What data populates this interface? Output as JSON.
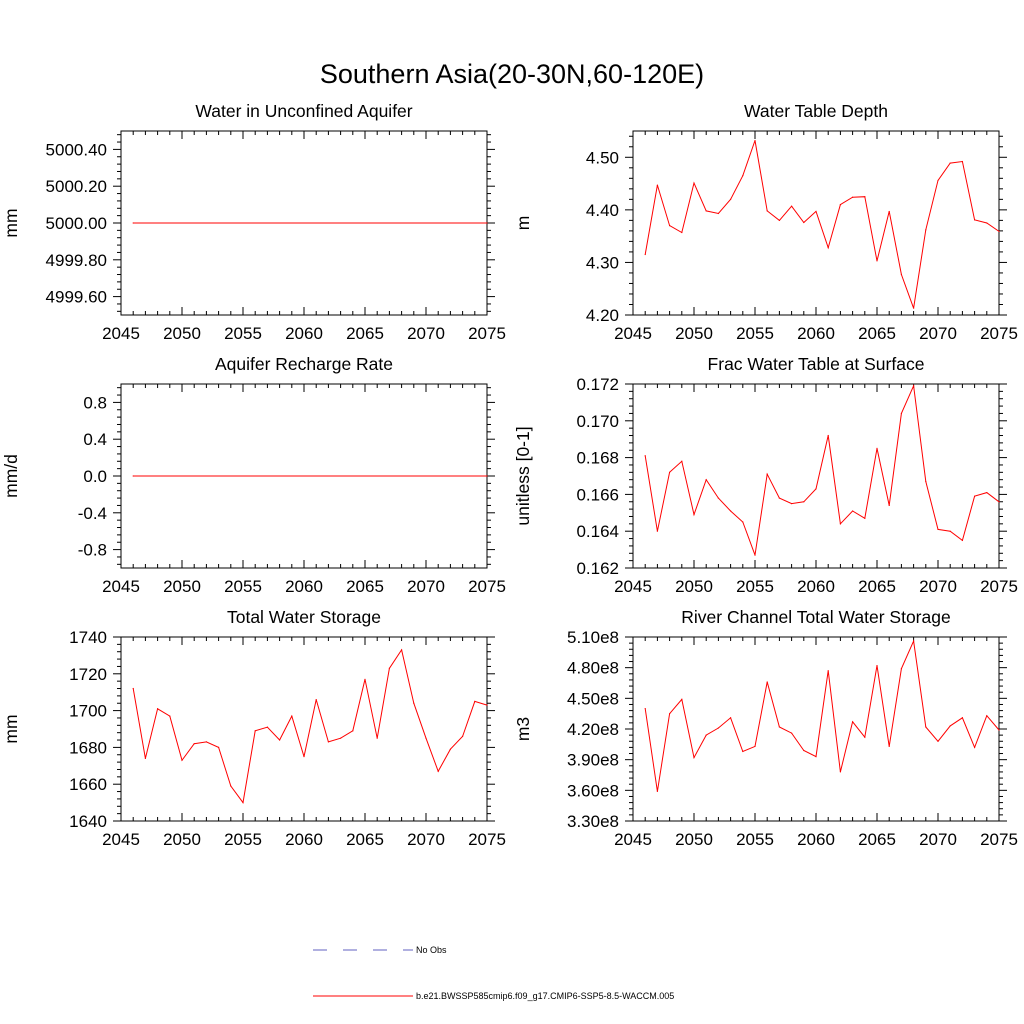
{
  "figure": {
    "title": "Southern Asia(20-30N,60-120E)",
    "series_color": "#ff0000",
    "obs_color": "#6060c0",
    "legend": [
      {
        "label": "No Obs",
        "style": "dashed"
      },
      {
        "label": "b.e21.BWSSP585cmip6.f09_g17.CMIP6-SSP5-8.5-WACCM.005",
        "style": "solid"
      }
    ]
  },
  "chart_data": [
    {
      "type": "line",
      "title": "Water in Unconfined Aquifer",
      "xlabel": "",
      "ylabel": "mm",
      "xlim": [
        2045,
        2075
      ],
      "ylim": [
        4999.5,
        5000.5
      ],
      "xticks": [
        2045,
        2050,
        2055,
        2060,
        2065,
        2070,
        2075
      ],
      "yticks": [
        4999.6,
        4999.8,
        5000.0,
        5000.2,
        5000.4
      ],
      "ytick_labels": [
        "4999.60",
        "4999.80",
        "5000.00",
        "5000.20",
        "5000.40"
      ],
      "x": [
        2046,
        2075
      ],
      "values": [
        5000.0,
        5000.0
      ]
    },
    {
      "type": "line",
      "title": "Water Table Depth",
      "xlabel": "",
      "ylabel": "m",
      "xlim": [
        2045,
        2075
      ],
      "ylim": [
        4.2,
        4.55
      ],
      "xticks": [
        2045,
        2050,
        2055,
        2060,
        2065,
        2070,
        2075
      ],
      "yticks": [
        4.2,
        4.3,
        4.4,
        4.5
      ],
      "ytick_labels": [
        "4.20",
        "4.30",
        "4.40",
        "4.50"
      ],
      "x": [
        2046,
        2047,
        2048,
        2049,
        2050,
        2051,
        2052,
        2053,
        2054,
        2055,
        2056,
        2057,
        2058,
        2059,
        2060,
        2061,
        2062,
        2063,
        2064,
        2065,
        2066,
        2067,
        2068,
        2069,
        2070,
        2071,
        2072,
        2073,
        2074,
        2075
      ],
      "values": [
        4.315,
        4.447,
        4.37,
        4.357,
        4.451,
        4.398,
        4.393,
        4.42,
        4.465,
        4.532,
        4.398,
        4.38,
        4.407,
        4.376,
        4.397,
        4.328,
        4.41,
        4.424,
        4.425,
        4.303,
        4.397,
        4.277,
        4.213,
        4.362,
        4.456,
        4.489,
        4.492,
        4.381,
        4.375,
        4.359
      ]
    },
    {
      "type": "line",
      "title": "Aquifer Recharge Rate",
      "xlabel": "",
      "ylabel": "mm/d",
      "xlim": [
        2045,
        2075
      ],
      "ylim": [
        -1.0,
        1.0
      ],
      "xticks": [
        2045,
        2050,
        2055,
        2060,
        2065,
        2070,
        2075
      ],
      "yticks": [
        -0.8,
        -0.4,
        0.0,
        0.4,
        0.8
      ],
      "ytick_labels": [
        "-0.8",
        "-0.4",
        "0.0",
        "0.4",
        "0.8"
      ],
      "x": [
        2046,
        2075
      ],
      "values": [
        0.0,
        0.0
      ]
    },
    {
      "type": "line",
      "title": "Frac Water Table at Surface",
      "xlabel": "",
      "ylabel": "unitless [0-1]",
      "xlim": [
        2045,
        2075
      ],
      "ylim": [
        0.162,
        0.172
      ],
      "xticks": [
        2045,
        2050,
        2055,
        2060,
        2065,
        2070,
        2075
      ],
      "yticks": [
        0.162,
        0.164,
        0.166,
        0.168,
        0.17,
        0.172
      ],
      "ytick_labels": [
        "0.162",
        "0.164",
        "0.166",
        "0.168",
        "0.170",
        "0.172"
      ],
      "x": [
        2046,
        2047,
        2048,
        2049,
        2050,
        2051,
        2052,
        2053,
        2054,
        2055,
        2056,
        2057,
        2058,
        2059,
        2060,
        2061,
        2062,
        2063,
        2064,
        2065,
        2066,
        2067,
        2068,
        2069,
        2070,
        2071,
        2072,
        2073,
        2074,
        2075
      ],
      "values": [
        0.1681,
        0.164,
        0.1672,
        0.1678,
        0.1649,
        0.1668,
        0.1658,
        0.1651,
        0.1645,
        0.1627,
        0.1671,
        0.1658,
        0.1655,
        0.1656,
        0.1663,
        0.1692,
        0.1644,
        0.1651,
        0.1647,
        0.1685,
        0.1654,
        0.1704,
        0.1719,
        0.1667,
        0.1641,
        0.164,
        0.1635,
        0.1659,
        0.1661,
        0.1656
      ]
    },
    {
      "type": "line",
      "title": "Total Water Storage",
      "xlabel": "",
      "ylabel": "mm",
      "xlim": [
        2045,
        2075
      ],
      "ylim": [
        1640,
        1740
      ],
      "xticks": [
        2045,
        2050,
        2055,
        2060,
        2065,
        2070,
        2075
      ],
      "yticks": [
        1640,
        1660,
        1680,
        1700,
        1720,
        1740
      ],
      "ytick_labels": [
        "1640",
        "1660",
        "1680",
        "1700",
        "1720",
        "1740"
      ],
      "x": [
        2046,
        2047,
        2048,
        2049,
        2050,
        2051,
        2052,
        2053,
        2054,
        2055,
        2056,
        2057,
        2058,
        2059,
        2060,
        2061,
        2062,
        2063,
        2064,
        2065,
        2066,
        2067,
        2068,
        2069,
        2070,
        2071,
        2072,
        2073,
        2074,
        2075
      ],
      "values": [
        1712,
        1674,
        1701,
        1697,
        1673,
        1682,
        1683,
        1680,
        1659,
        1650,
        1689,
        1691,
        1684,
        1697,
        1675,
        1706,
        1683,
        1685,
        1689,
        1717,
        1685,
        1723,
        1733,
        1704,
        1685,
        1667,
        1679,
        1686,
        1705,
        1703
      ]
    },
    {
      "type": "line",
      "title": "River Channel Total Water Storage",
      "xlabel": "",
      "ylabel": "m3",
      "xlim": [
        2045,
        2075
      ],
      "ylim": [
        330000000,
        510000000
      ],
      "xticks": [
        2045,
        2050,
        2055,
        2060,
        2065,
        2070,
        2075
      ],
      "yticks": [
        330000000,
        360000000,
        390000000,
        420000000,
        450000000,
        480000000,
        510000000
      ],
      "ytick_labels": [
        "3.30e8",
        "3.60e8",
        "3.90e8",
        "4.20e8",
        "4.50e8",
        "4.80e8",
        "5.10e8"
      ],
      "x": [
        2046,
        2047,
        2048,
        2049,
        2050,
        2051,
        2052,
        2053,
        2054,
        2055,
        2056,
        2057,
        2058,
        2059,
        2060,
        2061,
        2062,
        2063,
        2064,
        2065,
        2066,
        2067,
        2068,
        2069,
        2070,
        2071,
        2072,
        2073,
        2074,
        2075
      ],
      "values": [
        440000000,
        359000000,
        435000000,
        449000000,
        392000000,
        414000000,
        421000000,
        431000000,
        398000000,
        403000000,
        466000000,
        422000000,
        416000000,
        399000000,
        393000000,
        477000000,
        378000000,
        427000000,
        412000000,
        482000000,
        403000000,
        479000000,
        506000000,
        422000000,
        408000000,
        423000000,
        431000000,
        402000000,
        433000000,
        419000000
      ]
    }
  ]
}
